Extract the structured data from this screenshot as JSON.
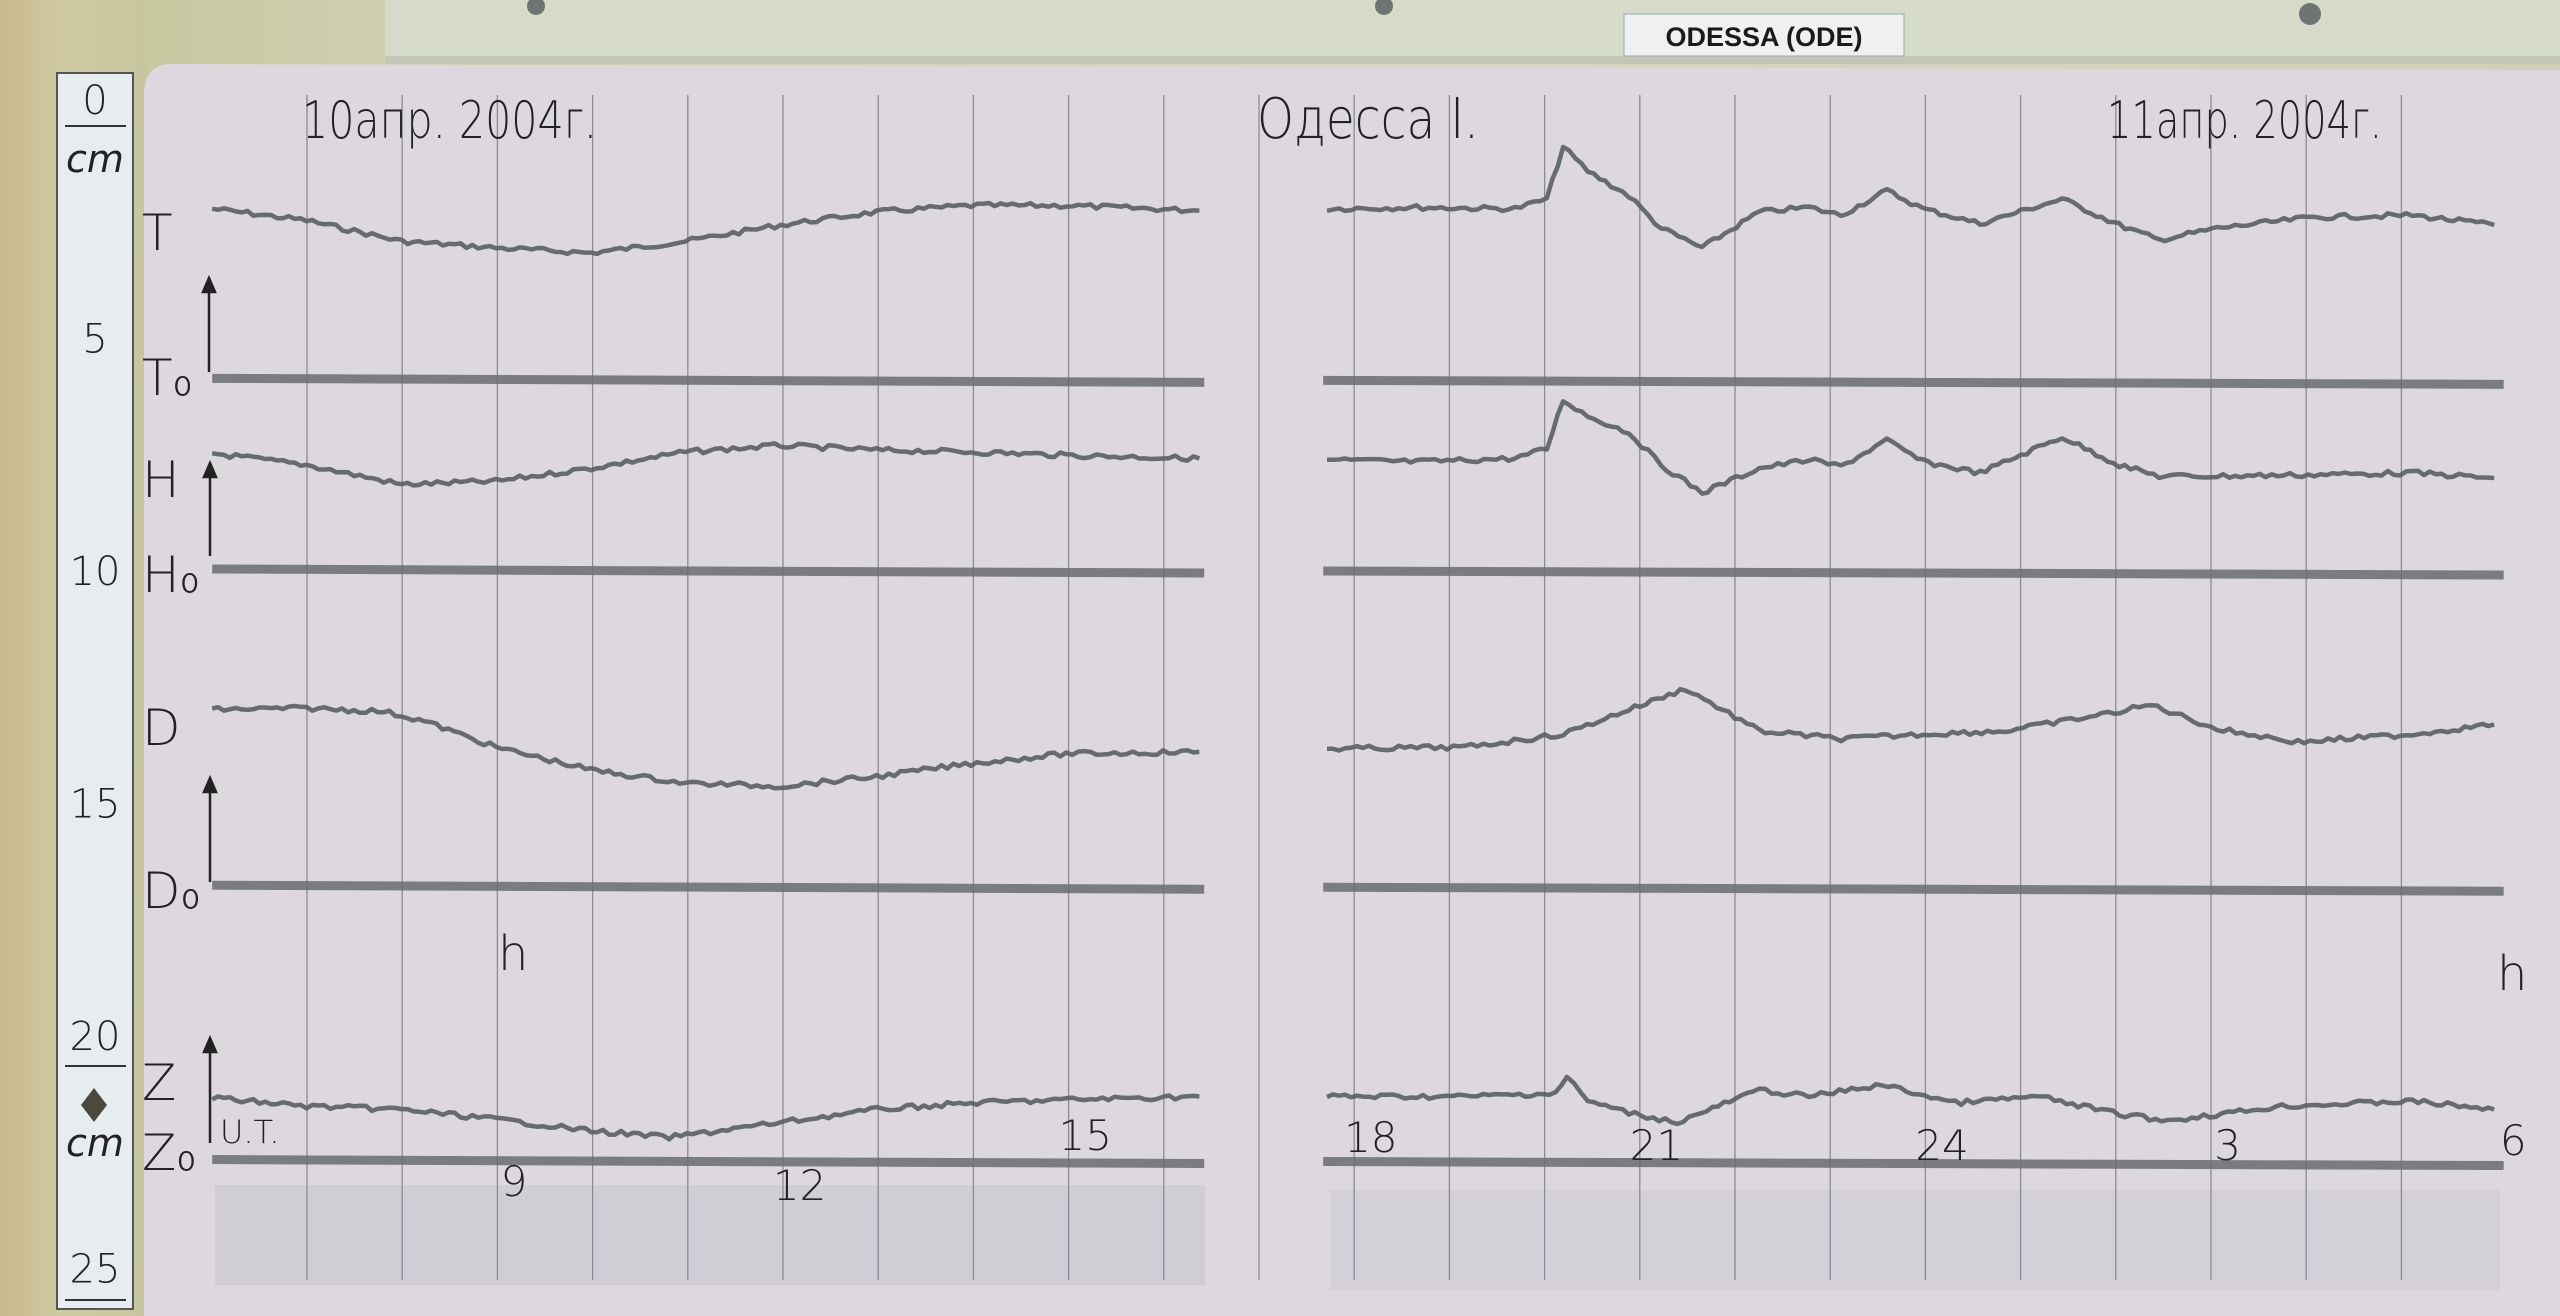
{
  "station_plate": "ODESSA (ODE)",
  "header": {
    "date_left": "10апр. 2004г.",
    "station": "Одесса I.",
    "date_right": "11апр. 2004г."
  },
  "ruler": {
    "unit_top": "cm",
    "unit_bottom": "cm",
    "ticks": [
      "0",
      "5",
      "10",
      "15",
      "20",
      "25"
    ]
  },
  "component_labels": {
    "T": "T",
    "T0": "T₀",
    "H": "H",
    "H0": "H₀",
    "D": "D",
    "D0": "D₀",
    "Z": "Z",
    "Z0": "Z₀"
  },
  "markers": {
    "h_left": "h",
    "h_right": "h",
    "ut": "U.T."
  },
  "colors": {
    "paper": "#dcd8de",
    "trace": "#5b5f61",
    "baseline": "#6a6d70",
    "ink": "#1e1e22",
    "ruler": "#e6ecef"
  },
  "chart_data": {
    "type": "line",
    "title": "Одесса I.",
    "xlabel": "U.T.",
    "ylabel": "cm",
    "x_tick_labels": [
      "9",
      "12",
      "15",
      "18",
      "21",
      "24",
      "3",
      "6"
    ],
    "x_ticks_hours": [
      9,
      12,
      15,
      18,
      21,
      24,
      27,
      30
    ],
    "ylim": [
      0,
      25
    ],
    "y_inverted": true,
    "grid": "vertical",
    "baselines": [
      {
        "name": "T₀",
        "value": 5.9
      },
      {
        "name": "H₀",
        "value": 10.0
      },
      {
        "name": "D₀",
        "value": 16.8
      },
      {
        "name": "Z₀",
        "value": 22.7
      }
    ],
    "series": [
      {
        "name": "T",
        "segments": [
          [
            [
              5.83,
              2.21
            ],
            [
              6.82,
              2.46
            ],
            [
              7.82,
              2.91
            ],
            [
              8.81,
              3.05
            ],
            [
              9.81,
              3.16
            ],
            [
              10.8,
              2.91
            ],
            [
              11.8,
              2.56
            ],
            [
              12.81,
              2.28
            ],
            [
              13.8,
              2.14
            ],
            [
              14.8,
              2.14
            ],
            [
              16.2,
              2.25
            ]
          ],
          [
            [
              17.54,
              2.21
            ],
            [
              18.48,
              2.18
            ],
            [
              19.51,
              2.21
            ],
            [
              19.85,
              2.0
            ],
            [
              20.02,
              0.88
            ],
            [
              20.28,
              1.4
            ],
            [
              20.71,
              1.93
            ],
            [
              21.05,
              2.63
            ],
            [
              21.48,
              3.05
            ],
            [
              22.08,
              2.28
            ],
            [
              22.6,
              2.18
            ],
            [
              22.94,
              2.35
            ],
            [
              23.42,
              1.82
            ],
            [
              23.8,
              2.21
            ],
            [
              24.4,
              2.53
            ],
            [
              25.26,
              2.0
            ],
            [
              25.86,
              2.56
            ],
            [
              26.28,
              2.88
            ],
            [
              26.89,
              2.63
            ],
            [
              27.91,
              2.39
            ],
            [
              28.94,
              2.35
            ],
            [
              29.8,
              2.56
            ]
          ]
        ]
      },
      {
        "name": "H",
        "segments": [
          [
            [
              5.83,
              7.47
            ],
            [
              6.82,
              7.72
            ],
            [
              7.82,
              8.14
            ],
            [
              8.81,
              8.07
            ],
            [
              9.81,
              7.79
            ],
            [
              10.8,
              7.44
            ],
            [
              11.8,
              7.3
            ],
            [
              12.81,
              7.4
            ],
            [
              13.8,
              7.44
            ],
            [
              14.8,
              7.51
            ],
            [
              16.2,
              7.58
            ]
          ],
          [
            [
              17.54,
              7.61
            ],
            [
              18.48,
              7.65
            ],
            [
              19.51,
              7.58
            ],
            [
              19.85,
              7.37
            ],
            [
              20.02,
              6.32
            ],
            [
              20.28,
              6.67
            ],
            [
              20.71,
              7.02
            ],
            [
              21.05,
              7.72
            ],
            [
              21.48,
              8.32
            ],
            [
              22.08,
              7.79
            ],
            [
              22.6,
              7.61
            ],
            [
              22.94,
              7.75
            ],
            [
              23.42,
              7.19
            ],
            [
              23.8,
              7.65
            ],
            [
              24.4,
              7.89
            ],
            [
              25.26,
              7.12
            ],
            [
              25.86,
              7.72
            ],
            [
              26.28,
              7.96
            ],
            [
              26.89,
              7.96
            ],
            [
              27.91,
              7.93
            ],
            [
              28.94,
              7.89
            ],
            [
              29.8,
              8.0
            ]
          ]
        ]
      },
      {
        "name": "D",
        "segments": [
          [
            [
              5.83,
              12.98
            ],
            [
              6.82,
              12.95
            ],
            [
              7.63,
              13.02
            ],
            [
              8.06,
              13.23
            ],
            [
              8.81,
              13.79
            ],
            [
              9.81,
              14.28
            ],
            [
              10.8,
              14.56
            ],
            [
              11.8,
              14.63
            ],
            [
              12.81,
              14.42
            ],
            [
              13.8,
              14.14
            ],
            [
              14.8,
              13.93
            ],
            [
              16.2,
              13.89
            ]
          ],
          [
            [
              17.54,
              13.82
            ],
            [
              18.99,
              13.79
            ],
            [
              20.02,
              13.51
            ],
            [
              20.71,
              12.98
            ],
            [
              21.31,
              12.53
            ],
            [
              22.08,
              13.44
            ],
            [
              22.94,
              13.61
            ],
            [
              23.8,
              13.51
            ],
            [
              24.66,
              13.44
            ],
            [
              25.68,
              13.09
            ],
            [
              26.2,
              12.88
            ],
            [
              26.89,
              13.4
            ],
            [
              27.74,
              13.68
            ],
            [
              28.94,
              13.51
            ],
            [
              29.8,
              13.3
            ]
          ]
        ]
      },
      {
        "name": "Z",
        "segments": [
          [
            [
              5.83,
              21.33
            ],
            [
              6.82,
              21.51
            ],
            [
              7.82,
              21.58
            ],
            [
              8.81,
              21.79
            ],
            [
              9.81,
              22.04
            ],
            [
              10.63,
              22.18
            ],
            [
              11.8,
              21.86
            ],
            [
              12.81,
              21.58
            ],
            [
              13.8,
              21.44
            ],
            [
              14.8,
              21.37
            ],
            [
              16.2,
              21.3
            ]
          ],
          [
            [
              17.54,
              21.3
            ],
            [
              18.99,
              21.3
            ],
            [
              19.94,
              21.23
            ],
            [
              20.06,
              20.88
            ],
            [
              20.28,
              21.4
            ],
            [
              20.71,
              21.65
            ],
            [
              21.22,
              21.86
            ],
            [
              22.08,
              21.16
            ],
            [
              22.6,
              21.3
            ],
            [
              23.37,
              21.05
            ],
            [
              24.14,
              21.44
            ],
            [
              25.0,
              21.3
            ],
            [
              25.86,
              21.68
            ],
            [
              26.37,
              21.82
            ],
            [
              27.57,
              21.51
            ],
            [
              28.94,
              21.4
            ],
            [
              29.8,
              21.58
            ]
          ]
        ]
      }
    ]
  }
}
